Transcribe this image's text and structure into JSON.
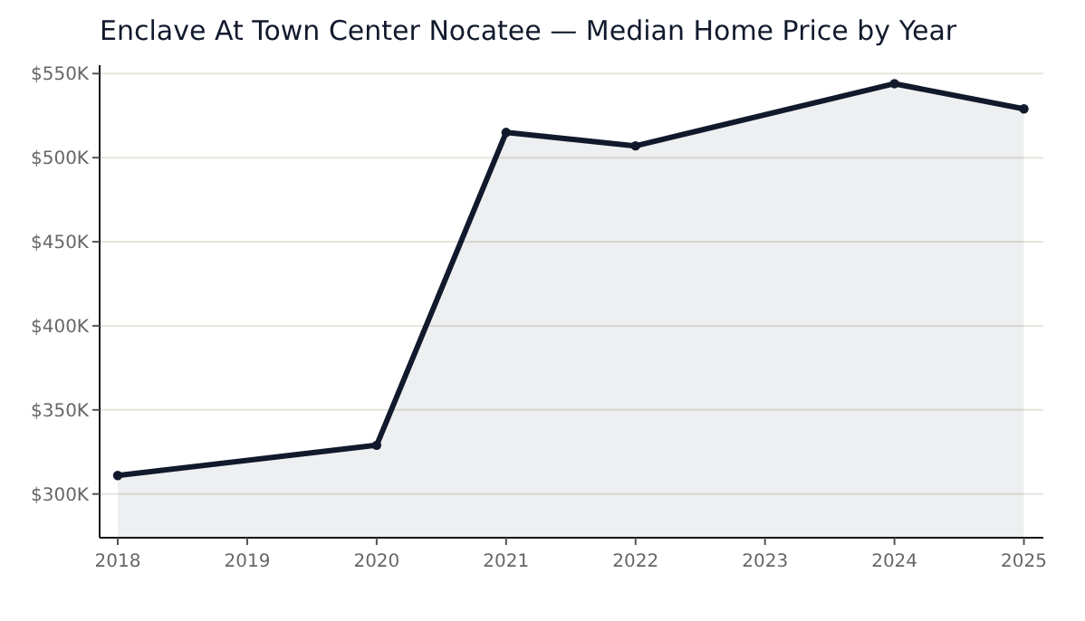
{
  "chart_data": {
    "type": "area",
    "title": "Enclave At Town Center Nocatee — Median Home Price by Year",
    "x": [
      2018,
      2020,
      2021,
      2022,
      2024,
      2025
    ],
    "series": [
      {
        "color": "#111a2c",
        "values": [
          311000,
          329000,
          515000,
          507000,
          544000,
          529000
        ]
      }
    ],
    "xlim": [
      2017.86,
      2025.15
    ],
    "xticks": [
      2018,
      2019,
      2020,
      2021,
      2022,
      2023,
      2024,
      2025
    ],
    "ylim": [
      274000,
      555000
    ],
    "yticks": [
      {
        "value": 300000,
        "label": "$300K"
      },
      {
        "value": 350000,
        "label": "$350K"
      },
      {
        "value": 400000,
        "label": "$400K"
      },
      {
        "value": 450000,
        "label": "$450K"
      },
      {
        "value": 500000,
        "label": "$500K"
      },
      {
        "value": 550000,
        "label": "$550K"
      }
    ],
    "grid": "y",
    "marker": "circle",
    "line_style": "solid"
  }
}
